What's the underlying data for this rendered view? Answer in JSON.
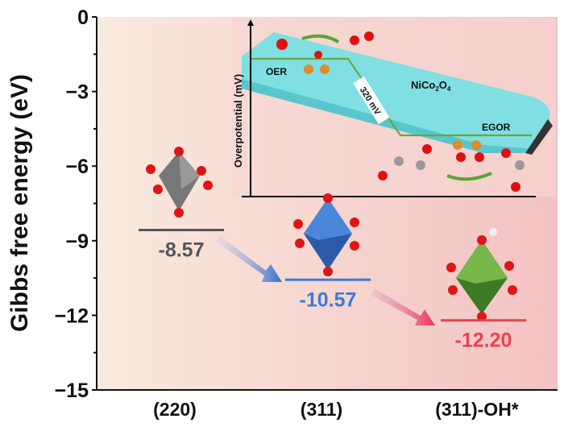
{
  "chart_data": {
    "type": "energy-level diagram",
    "ylabel": "Gibbs free energy (eV)",
    "ylim": [
      -15,
      0
    ],
    "yticks": [
      "0",
      "-3",
      "-6",
      "-9",
      "-12",
      "-15"
    ],
    "ytick_values": [
      0,
      -3,
      -6,
      -9,
      -12,
      -15
    ],
    "categories": [
      "(220)",
      "(311)",
      "(311)-OH*"
    ],
    "values": [
      -8.57,
      -10.57,
      -12.2
    ],
    "value_labels": [
      "-8.57",
      "-10.57",
      "-12.20"
    ],
    "colors": [
      "#555555",
      "#3a7bd5",
      "#e8434f"
    ],
    "grid": false
  },
  "inset": {
    "ylabel": "Overpotential (mV)",
    "label_oer": "OER",
    "label_egor": "EGOR",
    "label_material": "NiCo",
    "material_sub1": "2",
    "material_mid": "O",
    "material_sub2": "4",
    "step_label": "320 mV",
    "slab_color": "#6fd6dc",
    "line_color": "#6aa83a"
  }
}
